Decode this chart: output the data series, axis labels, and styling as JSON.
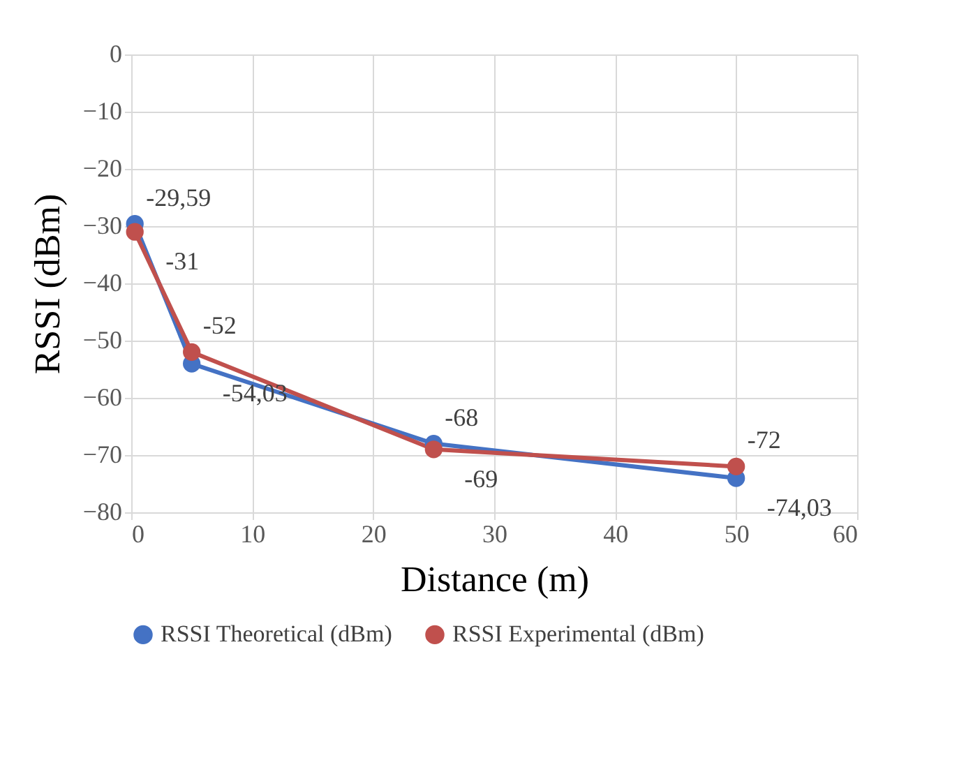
{
  "chart_data": {
    "type": "line",
    "xlabel": "Distance (m)",
    "ylabel": "RSSI (dBm)",
    "x": [
      0.3,
      5,
      25,
      50
    ],
    "series": [
      {
        "name": "RSSI Theoretical (dBm)",
        "color": "#4472c4",
        "values": [
          -29.59,
          -54.03,
          -68,
          -74.03
        ],
        "value_labels": [
          "-29,59",
          "-54,03",
          "-68",
          "-74,03"
        ]
      },
      {
        "name": "RSSI Experimental (dBm)",
        "color": "#c0504d",
        "values": [
          -31,
          -52,
          -69,
          -72
        ],
        "value_labels": [
          "-31",
          "-52",
          "-69",
          "-72"
        ]
      }
    ],
    "xlim": [
      0,
      60
    ],
    "xticks": [
      0,
      10,
      20,
      30,
      40,
      50,
      60
    ],
    "ylim": [
      -80,
      0
    ],
    "yticks": [
      -80,
      -70,
      -60,
      -50,
      -40,
      -30,
      -20,
      -10,
      0
    ],
    "grid": true,
    "legend": "bottom",
    "marker": "circle",
    "line_style": "solid"
  }
}
